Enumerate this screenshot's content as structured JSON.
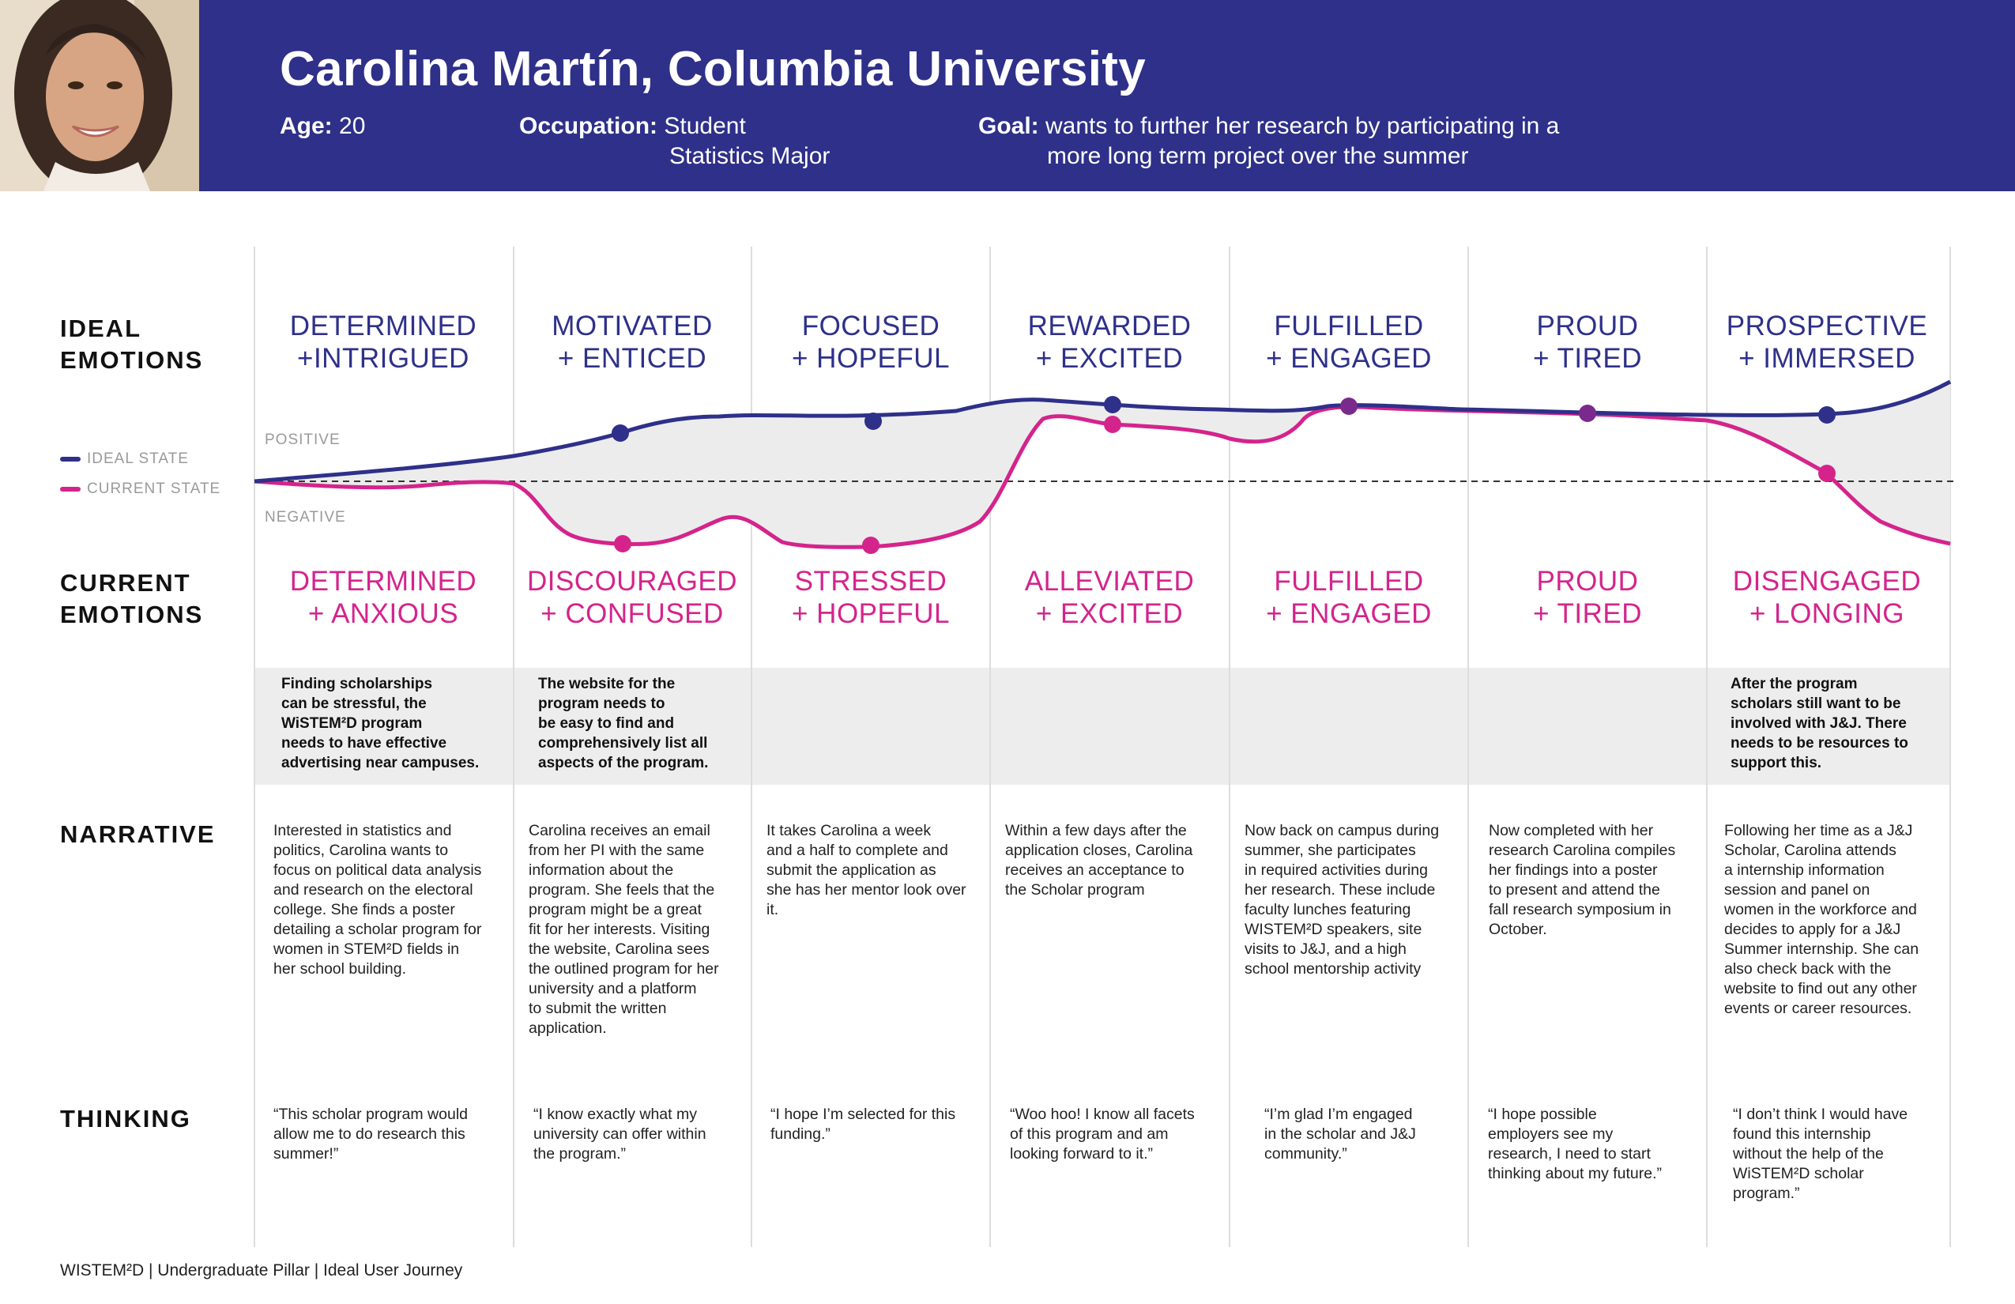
{
  "header": {
    "title": "Carolina Martín, Columbia University",
    "age_label": "Age:",
    "age_value": "20",
    "occupation_label": "Occupation:",
    "occupation_line1": "Student",
    "occupation_line2": "Statistics Major",
    "goal_label": "Goal:",
    "goal_line1": "wants to further her research by participating in a",
    "goal_line2": "more long term project over the summer",
    "bg_color": "#2e3089"
  },
  "labels": {
    "ideal_emotions_1": "IDEAL",
    "ideal_emotions_2": "EMOTIONS",
    "current_emotions_1": "CURRENT",
    "current_emotions_2": "EMOTIONS",
    "narrative": "NARRATIVE",
    "thinking": "THINKING",
    "legend_ideal": "IDEAL STATE",
    "legend_current": "CURRENT STATE",
    "positive": "POSITIVE",
    "negative": "NEGATIVE"
  },
  "colors": {
    "ideal": "#2e3089",
    "current": "#d4248c",
    "overlap": "#7a2a8c",
    "fill": "#ececec"
  },
  "stages": [
    {
      "ideal": [
        "DETERMINED",
        "+INTRIGUED"
      ],
      "current": [
        "DETERMINED",
        "+ ANXIOUS"
      ],
      "insight": [
        "Finding scholarships",
        "can be stressful, the",
        "WiSTEM²D program",
        "needs to have effective",
        "advertising near campuses."
      ],
      "narrative": [
        "Interested in statistics and",
        "politics, Carolina wants to",
        "focus on political data analysis",
        "and research on the electoral",
        "college. She finds a poster",
        "detailing a scholar program for",
        "women in STEM²D fields in",
        "her school building."
      ],
      "thinking": [
        "“This scholar program would",
        "allow me to do research this",
        "summer!”"
      ]
    },
    {
      "ideal": [
        "MOTIVATED",
        "+ ENTICED"
      ],
      "current": [
        "DISCOURAGED",
        "+ CONFUSED"
      ],
      "insight": [
        "The website for the",
        "program needs to",
        "be easy to find and",
        "comprehensively list all",
        "aspects of the program."
      ],
      "narrative": [
        "Carolina receives an email",
        "from her PI with the same",
        "information about the",
        "program. She feels that the",
        "program might be a great",
        "fit for her interests. Visiting",
        "the website, Carolina sees",
        "the outlined program for her",
        "university and a platform",
        "to submit the written",
        "application."
      ],
      "thinking": [
        "“I know exactly what my",
        "university can offer within",
        "the program.”"
      ]
    },
    {
      "ideal": [
        "FOCUSED",
        "+ HOPEFUL"
      ],
      "current": [
        "STRESSED",
        "+ HOPEFUL"
      ],
      "insight": [],
      "narrative": [
        "It takes Carolina a week",
        "and a half to complete and",
        "submit the application as",
        "she has her mentor look over",
        "it."
      ],
      "thinking": [
        "“I hope I’m selected for this",
        "funding.”"
      ]
    },
    {
      "ideal": [
        "REWARDED",
        "+ EXCITED"
      ],
      "current": [
        "ALLEVIATED",
        "+ EXCITED"
      ],
      "insight": [],
      "narrative": [
        "Within a few days after the",
        "application closes, Carolina",
        "receives an acceptance to",
        "the Scholar program"
      ],
      "thinking": [
        "“Woo hoo! I know all facets",
        "of this program and am",
        "looking forward to it.”"
      ]
    },
    {
      "ideal": [
        "FULFILLED",
        "+ ENGAGED"
      ],
      "current": [
        "FULFILLED",
        "+ ENGAGED"
      ],
      "insight": [],
      "narrative": [
        "Now back on campus during",
        "summer, she participates",
        "in required activities during",
        "her research. These include",
        "faculty lunches featuring",
        "WISTEM²D speakers, site",
        "visits to J&J, and a high",
        "school mentorship activity"
      ],
      "thinking": [
        "“I’m glad I’m engaged",
        "in the scholar and J&J",
        "community.”"
      ]
    },
    {
      "ideal": [
        "PROUD",
        "+ TIRED"
      ],
      "current": [
        "PROUD",
        "+ TIRED"
      ],
      "insight": [],
      "narrative": [
        "Now completed with her",
        "research Carolina compiles",
        "her findings into a poster",
        "to present and attend the",
        "fall research symposium in",
        "October."
      ],
      "thinking": [
        "“I hope possible",
        "employers see my",
        "research, I need to start",
        "thinking about my future.”"
      ]
    },
    {
      "ideal": [
        "PROSPECTIVE",
        "+ IMMERSED"
      ],
      "current": [
        "DISENGAGED",
        "+ LONGING"
      ],
      "insight": [
        "After the program",
        "scholars still want to be",
        "involved with J&J. There",
        "needs to be resources to",
        "support this."
      ],
      "narrative": [
        "Following her time as a J&J",
        "Scholar, Carolina attends",
        "a internship information",
        "session and panel on",
        "women in the workforce and",
        "decides to apply for a J&J",
        "Summer internship. She can",
        "also check back with the",
        "website to find out any other",
        "events or career resources."
      ],
      "thinking": [
        "“I don’t think I would have",
        "found this internship",
        "without the help of the",
        "WiSTEM²D scholar",
        "program.”"
      ]
    }
  ],
  "footer": "WISTEM²D | Undergraduate Pillar | Ideal User Journey"
}
